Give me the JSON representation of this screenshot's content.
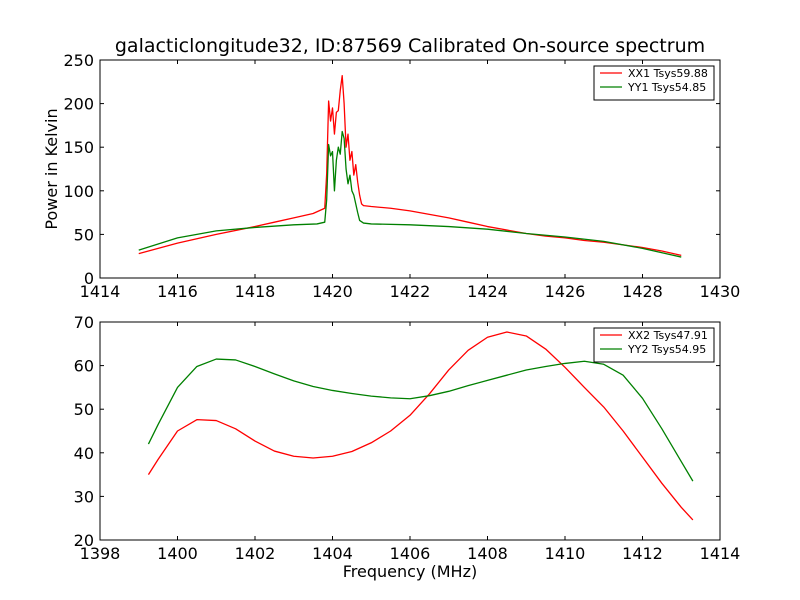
{
  "chart_data": [
    {
      "type": "line",
      "title": "galacticlongitude32, ID:87569 Calibrated On-source spectrum",
      "xlabel": "",
      "ylabel": "Power in Kelvin",
      "xlim": [
        1414,
        1430
      ],
      "ylim": [
        0,
        250
      ],
      "xticks": [
        1414,
        1416,
        1418,
        1420,
        1422,
        1424,
        1426,
        1428,
        1430
      ],
      "yticks": [
        0,
        50,
        100,
        150,
        200,
        250
      ],
      "grid": false,
      "legend_position": "top-right",
      "series": [
        {
          "name": "XX1 Tsys59.88",
          "color": "#ff0000",
          "x": [
            1415.0,
            1416.0,
            1417.0,
            1418.0,
            1418.5,
            1419.0,
            1419.5,
            1419.8,
            1419.85,
            1419.9,
            1419.95,
            1420.0,
            1420.05,
            1420.1,
            1420.15,
            1420.2,
            1420.25,
            1420.3,
            1420.35,
            1420.4,
            1420.45,
            1420.5,
            1420.55,
            1420.6,
            1420.65,
            1420.7,
            1420.75,
            1420.8,
            1421.0,
            1421.5,
            1422.0,
            1422.5,
            1423.0,
            1423.5,
            1424.0,
            1424.5,
            1425.0,
            1425.5,
            1426.0,
            1426.5,
            1427.0,
            1427.5,
            1428.0,
            1428.5,
            1429.0
          ],
          "y": [
            28,
            40,
            50,
            59,
            64,
            69,
            74,
            80,
            120,
            203,
            180,
            195,
            165,
            190,
            192,
            215,
            232,
            200,
            150,
            165,
            135,
            145,
            118,
            130,
            110,
            95,
            85,
            83,
            82,
            80,
            77,
            73,
            69,
            64,
            59,
            55,
            51,
            48,
            46,
            43,
            41,
            38,
            35,
            31,
            26
          ]
        },
        {
          "name": "YY1 Tsys54.85",
          "color": "#008000",
          "x": [
            1415.0,
            1416.0,
            1417.0,
            1418.0,
            1419.0,
            1419.6,
            1419.8,
            1419.85,
            1419.9,
            1419.95,
            1420.0,
            1420.05,
            1420.1,
            1420.15,
            1420.2,
            1420.25,
            1420.3,
            1420.35,
            1420.4,
            1420.45,
            1420.5,
            1420.55,
            1420.6,
            1420.65,
            1420.7,
            1420.8,
            1421.0,
            1422.0,
            1423.0,
            1424.0,
            1425.0,
            1426.0,
            1427.0,
            1428.0,
            1429.0
          ],
          "y": [
            32,
            46,
            54,
            58,
            61,
            62,
            64,
            90,
            153,
            140,
            145,
            100,
            135,
            150,
            142,
            168,
            160,
            125,
            108,
            118,
            100,
            95,
            85,
            75,
            66,
            63,
            62,
            61,
            59,
            56,
            51,
            47,
            42,
            34,
            24
          ]
        }
      ]
    },
    {
      "type": "line",
      "title": "",
      "xlabel": "Frequency (MHz)",
      "ylabel": "",
      "xlim": [
        1398,
        1414
      ],
      "ylim": [
        20,
        70
      ],
      "xticks": [
        1398,
        1400,
        1402,
        1404,
        1406,
        1408,
        1410,
        1412,
        1414
      ],
      "yticks": [
        20,
        30,
        40,
        50,
        60,
        70
      ],
      "grid": false,
      "legend_position": "top-right",
      "series": [
        {
          "name": "XX2 Tsys47.91",
          "color": "#ff0000",
          "x": [
            1399.25,
            1399.5,
            1400.0,
            1400.5,
            1401.0,
            1401.5,
            1402.0,
            1402.5,
            1403.0,
            1403.5,
            1404.0,
            1404.5,
            1405.0,
            1405.5,
            1406.0,
            1406.5,
            1407.0,
            1407.5,
            1408.0,
            1408.5,
            1409.0,
            1409.5,
            1410.0,
            1410.5,
            1411.0,
            1411.5,
            1412.0,
            1412.5,
            1413.0,
            1413.3
          ],
          "y": [
            35,
            38.5,
            45,
            47.6,
            47.4,
            45.5,
            42.7,
            40.4,
            39.2,
            38.8,
            39.2,
            40.3,
            42.3,
            45,
            48.6,
            53.5,
            59,
            63.5,
            66.5,
            67.7,
            66.8,
            63.8,
            59.6,
            55,
            50.5,
            45,
            39,
            33,
            27.5,
            24.6
          ]
        },
        {
          "name": "YY2 Tsys54.95",
          "color": "#008000",
          "x": [
            1399.25,
            1399.5,
            1400.0,
            1400.5,
            1401.0,
            1401.5,
            1402.0,
            1402.5,
            1403.0,
            1403.5,
            1404.0,
            1404.5,
            1405.0,
            1405.5,
            1406.0,
            1406.5,
            1407.0,
            1407.5,
            1408.0,
            1408.5,
            1409.0,
            1409.5,
            1410.0,
            1410.5,
            1411.0,
            1411.5,
            1412.0,
            1412.5,
            1413.0,
            1413.3
          ],
          "y": [
            42,
            46.5,
            55,
            59.8,
            61.5,
            61.3,
            59.8,
            58.1,
            56.5,
            55.2,
            54.3,
            53.6,
            53,
            52.6,
            52.4,
            53.1,
            54.1,
            55.4,
            56.6,
            57.8,
            59,
            59.8,
            60.5,
            61,
            60.3,
            57.8,
            52.5,
            45.5,
            38,
            33.5
          ]
        }
      ]
    }
  ]
}
